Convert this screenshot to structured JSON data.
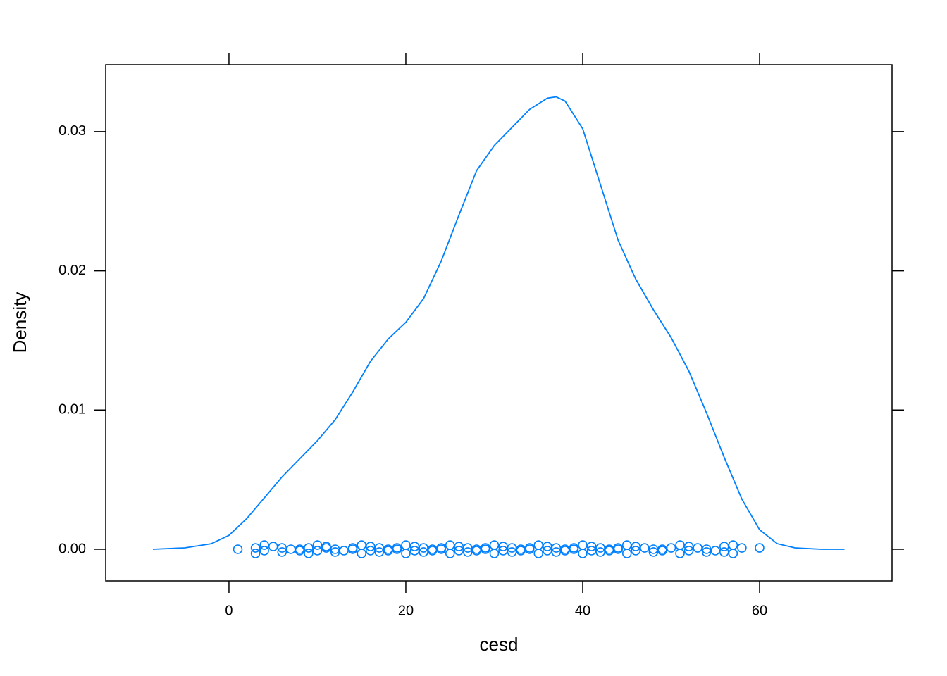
{
  "chart_data": {
    "type": "density",
    "xlabel": "cesd",
    "ylabel": "Density",
    "xlim": [
      -13.94,
      74.98
    ],
    "xticks": [
      0,
      20,
      40,
      60
    ],
    "ylim": [
      -0.002276,
      0.0348
    ],
    "yticks": [
      {
        "value": 0,
        "label": "0.00"
      },
      0.01,
      0.02,
      0.03
    ],
    "line": {
      "color": "#0080ff",
      "x": [
        -8.6,
        -5,
        -2,
        0,
        2,
        4,
        6,
        8,
        10,
        12,
        14,
        16,
        18,
        20,
        22,
        24,
        26,
        28,
        30,
        32,
        34,
        36,
        37,
        38,
        40,
        42,
        44,
        46,
        48,
        50,
        52,
        54,
        56,
        58,
        60,
        62,
        64,
        67,
        69.6
      ],
      "y": [
        0,
        0.0001,
        0.0004,
        0.001,
        0.0022,
        0.0037,
        0.0052,
        0.0065,
        0.0078,
        0.0093,
        0.0113,
        0.0135,
        0.0151,
        0.0163,
        0.018,
        0.0207,
        0.024,
        0.0272,
        0.029,
        0.0303,
        0.0316,
        0.0324,
        0.0325,
        0.0322,
        0.0302,
        0.0262,
        0.0222,
        0.0194,
        0.0172,
        0.0152,
        0.0128,
        0.0098,
        0.0066,
        0.0036,
        0.0014,
        0.0004,
        0.0001,
        0,
        0
      ]
    },
    "points": {
      "color": "#0080ff",
      "x": [
        1,
        3,
        3,
        4,
        4,
        5,
        6,
        6,
        7,
        8,
        8,
        9,
        9,
        10,
        10,
        11,
        11,
        12,
        12,
        13,
        14,
        14,
        15,
        15,
        16,
        16,
        17,
        17,
        18,
        18,
        19,
        19,
        20,
        20,
        21,
        21,
        22,
        22,
        23,
        23,
        24,
        24,
        25,
        25,
        26,
        26,
        27,
        27,
        28,
        28,
        29,
        29,
        30,
        30,
        31,
        31,
        32,
        32,
        33,
        33,
        34,
        34,
        35,
        35,
        36,
        36,
        37,
        37,
        38,
        38,
        39,
        39,
        40,
        40,
        41,
        41,
        42,
        42,
        43,
        43,
        44,
        44,
        45,
        45,
        46,
        46,
        47,
        48,
        48,
        49,
        49,
        50,
        51,
        51,
        52,
        52,
        53,
        54,
        54,
        55,
        56,
        56,
        57,
        57,
        58,
        60
      ],
      "y": [
        0,
        0.0001,
        -0.0003,
        0.0003,
        -0.0001,
        0.0002,
        0.0001,
        -0.0002,
        0,
        -0.0001,
        0,
        0.0001,
        -0.0003,
        0.0003,
        -0.0001,
        0.0002,
        0.0001,
        -0.0002,
        0,
        -0.0001,
        0,
        0.0001,
        -0.0003,
        0.0003,
        -0.0001,
        0.0002,
        0.0001,
        -0.0002,
        0,
        -0.0001,
        0,
        0.0001,
        -0.0003,
        0.0003,
        -0.0001,
        0.0002,
        0.0001,
        -0.0002,
        0,
        -0.0001,
        0,
        0.0001,
        -0.0003,
        0.0003,
        -0.0001,
        0.0002,
        0.0001,
        -0.0002,
        0,
        -0.0001,
        0,
        0.0001,
        -0.0003,
        0.0003,
        -0.0001,
        0.0002,
        0.0001,
        -0.0002,
        0,
        -0.0001,
        0,
        0.0001,
        -0.0003,
        0.0003,
        -0.0001,
        0.0002,
        0.0001,
        -0.0002,
        0,
        -0.0001,
        0,
        0.0001,
        -0.0003,
        0.0003,
        -0.0001,
        0.0002,
        0.0001,
        -0.0002,
        0,
        -0.0001,
        0,
        0.0001,
        -0.0003,
        0.0003,
        -0.0001,
        0.0002,
        0.0001,
        -0.0002,
        0,
        -0.0001,
        0,
        0.0001,
        -0.0003,
        0.0003,
        -0.0001,
        0.0002,
        0.0001,
        -0.0002,
        0,
        -0.0001,
        0.0002,
        -0.0002,
        0.0003,
        -0.0003,
        0.0001,
        0.0001
      ]
    }
  }
}
